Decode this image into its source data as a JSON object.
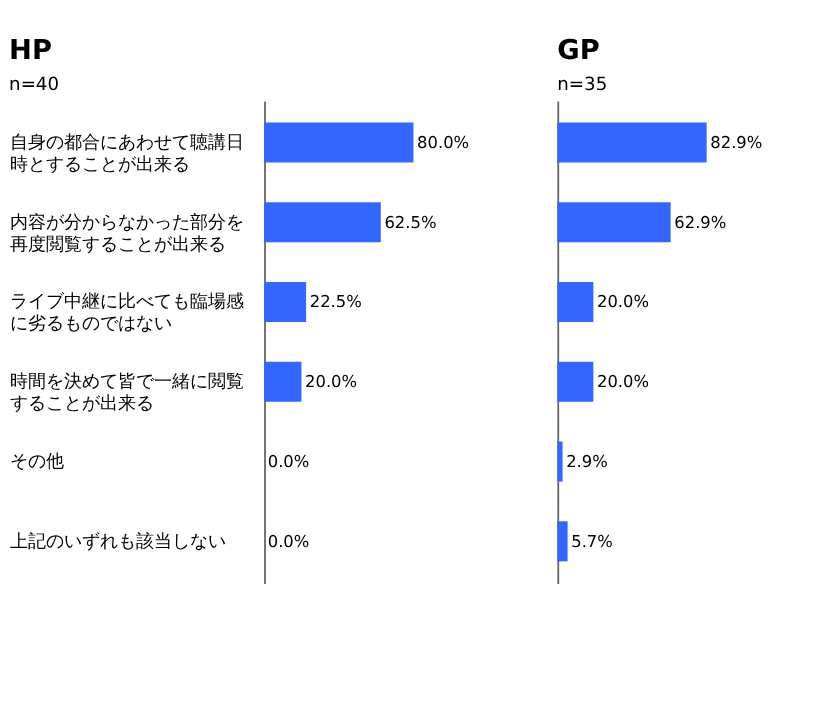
{
  "chart_data": [
    {
      "type": "bar",
      "orientation": "horizontal",
      "title": "HP",
      "subtitle": "n=40",
      "categories": [
        "自身の都合にあわせて聴講日時とすることが出来る",
        "内容が分からなかった部分を再度閲覧することが出来る",
        "ライブ中継に比べても臨場感に劣るものではない",
        "時間を決めて皆で一緒に閲覧することが出来る",
        "その他",
        "上記のいずれも該当しない"
      ],
      "values": [
        80.0,
        62.5,
        22.5,
        20.0,
        0.0,
        0.0
      ],
      "color": "#3366ff",
      "value_labels": [
        "80.0%",
        "62.5%",
        "22.5%",
        "20.0%",
        "0.0%",
        "0.0%"
      ],
      "tick_labels": "y"
    },
    {
      "type": "bar",
      "orientation": "horizontal",
      "title": "GP",
      "subtitle": "n=35",
      "categories": [
        null,
        null,
        null,
        null,
        null,
        null
      ],
      "values": [
        82.9,
        62.9,
        20.0,
        20.0,
        2.9,
        5.7
      ],
      "color": "#3366ff",
      "value_labels": [
        "82.9%",
        "62.9%",
        "20.0%",
        "20.0%",
        "2.9%",
        "5.7%"
      ],
      "tick_labels": false
    }
  ]
}
